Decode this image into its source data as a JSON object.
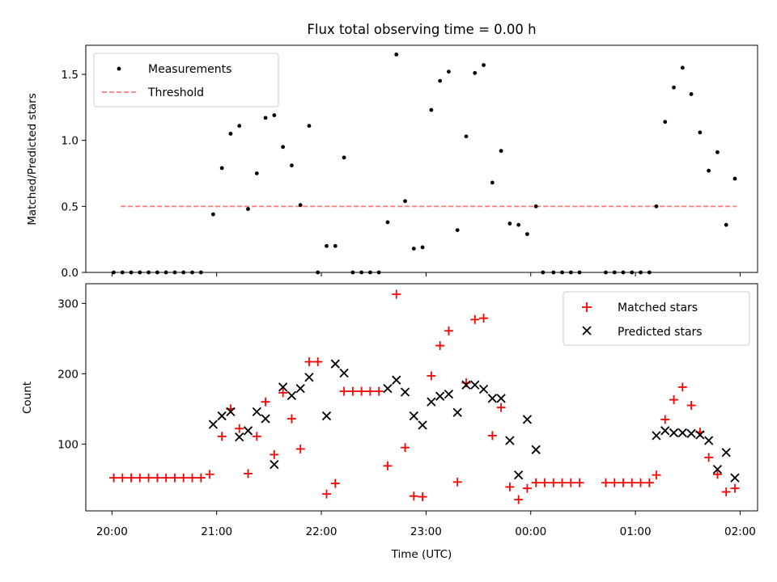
{
  "figure": {
    "title": "Flux total observing time = 0.00 h",
    "xlabel": "Time (UTC)"
  },
  "colors": {
    "measurements": "#000000",
    "threshold": "#ff7f7f",
    "matched": "#ff0000",
    "predicted": "#000000"
  },
  "chart_data": [
    {
      "type": "scatter",
      "ylabel": "Matched/Predicted stars",
      "xlim": [
        "19:45",
        "02:10"
      ],
      "ylim": [
        0,
        1.72
      ],
      "yticks": [
        "0.0",
        "0.5",
        "1.0",
        "1.5"
      ],
      "legend": {
        "placement": "top-left",
        "entries": [
          "Measurements",
          "Threshold"
        ]
      },
      "threshold": {
        "name": "Threshold",
        "y": 0.5,
        "x_start": "20:05",
        "x_end": "01:58"
      },
      "series": [
        {
          "name": "Measurements",
          "points": [
            [
              "20:01",
              0
            ],
            [
              "20:06",
              0
            ],
            [
              "20:11",
              0
            ],
            [
              "20:16",
              0
            ],
            [
              "20:21",
              0
            ],
            [
              "20:26",
              0
            ],
            [
              "20:31",
              0
            ],
            [
              "20:36",
              0
            ],
            [
              "20:41",
              0
            ],
            [
              "20:46",
              0
            ],
            [
              "20:51",
              0
            ],
            [
              "20:58",
              0.44
            ],
            [
              "21:03",
              0.79
            ],
            [
              "21:08",
              1.05
            ],
            [
              "21:13",
              1.11
            ],
            [
              "21:18",
              0.48
            ],
            [
              "21:23",
              0.75
            ],
            [
              "21:28",
              1.17
            ],
            [
              "21:33",
              1.19
            ],
            [
              "21:38",
              0.95
            ],
            [
              "21:43",
              0.81
            ],
            [
              "21:48",
              0.51
            ],
            [
              "21:53",
              1.11
            ],
            [
              "21:58",
              0.0
            ],
            [
              "22:03",
              0.2
            ],
            [
              "22:08",
              0.2
            ],
            [
              "22:13",
              0.87
            ],
            [
              "22:18",
              0
            ],
            [
              "22:23",
              0
            ],
            [
              "22:28",
              0
            ],
            [
              "22:33",
              0
            ],
            [
              "22:38",
              0.38
            ],
            [
              "22:43",
              1.65
            ],
            [
              "22:48",
              0.54
            ],
            [
              "22:53",
              0.18
            ],
            [
              "22:58",
              0.19
            ],
            [
              "23:03",
              1.23
            ],
            [
              "23:08",
              1.45
            ],
            [
              "23:13",
              1.52
            ],
            [
              "23:18",
              0.32
            ],
            [
              "23:23",
              1.03
            ],
            [
              "23:28",
              1.51
            ],
            [
              "23:33",
              1.57
            ],
            [
              "23:38",
              0.68
            ],
            [
              "23:43",
              0.92
            ],
            [
              "23:48",
              0.37
            ],
            [
              "23:53",
              0.36
            ],
            [
              "23:58",
              0.29
            ],
            [
              "00:03",
              0.5
            ],
            [
              "00:07",
              0
            ],
            [
              "00:13",
              0
            ],
            [
              "00:18",
              0
            ],
            [
              "00:23",
              0
            ],
            [
              "00:28",
              0
            ],
            [
              "00:43",
              0
            ],
            [
              "00:48",
              0
            ],
            [
              "00:53",
              0
            ],
            [
              "00:58",
              0
            ],
            [
              "01:03",
              0
            ],
            [
              "01:08",
              0
            ],
            [
              "01:12",
              0.5
            ],
            [
              "01:17",
              1.14
            ],
            [
              "01:22",
              1.4
            ],
            [
              "01:27",
              1.55
            ],
            [
              "01:32",
              1.35
            ],
            [
              "01:37",
              1.06
            ],
            [
              "01:42",
              0.77
            ],
            [
              "01:47",
              0.91
            ],
            [
              "01:52",
              0.36
            ],
            [
              "01:57",
              0.71
            ]
          ]
        }
      ]
    },
    {
      "type": "scatter",
      "ylabel": "Count",
      "xlim": [
        "19:45",
        "02:10"
      ],
      "ylim": [
        5,
        328
      ],
      "yticks": [
        "100",
        "200",
        "300"
      ],
      "xticks": [
        "20:00",
        "21:00",
        "22:00",
        "23:00",
        "00:00",
        "01:00",
        "02:00"
      ],
      "legend": {
        "placement": "top-right",
        "entries": [
          "Matched stars",
          "Predicted stars"
        ]
      },
      "series": [
        {
          "name": "Matched stars",
          "marker": "+",
          "points": [
            [
              "20:01",
              52
            ],
            [
              "20:06",
              52
            ],
            [
              "20:11",
              52
            ],
            [
              "20:16",
              52
            ],
            [
              "20:21",
              52
            ],
            [
              "20:26",
              52
            ],
            [
              "20:31",
              52
            ],
            [
              "20:36",
              52
            ],
            [
              "20:41",
              52
            ],
            [
              "20:46",
              52
            ],
            [
              "20:51",
              52
            ],
            [
              "20:56",
              57
            ],
            [
              "21:03",
              111
            ],
            [
              "21:08",
              150
            ],
            [
              "21:13",
              122
            ],
            [
              "21:18",
              58
            ],
            [
              "21:23",
              111
            ],
            [
              "21:28",
              160
            ],
            [
              "21:33",
              85
            ],
            [
              "21:38",
              173
            ],
            [
              "21:43",
              136
            ],
            [
              "21:48",
              93
            ],
            [
              "21:53",
              217
            ],
            [
              "21:58",
              217
            ],
            [
              "22:03",
              29
            ],
            [
              "22:08",
              44
            ],
            [
              "22:13",
              175
            ],
            [
              "22:18",
              175
            ],
            [
              "22:23",
              175
            ],
            [
              "22:28",
              175
            ],
            [
              "22:33",
              175
            ],
            [
              "22:38",
              69
            ],
            [
              "22:43",
              313
            ],
            [
              "22:48",
              95
            ],
            [
              "22:53",
              26
            ],
            [
              "22:58",
              25
            ],
            [
              "23:03",
              197
            ],
            [
              "23:08",
              240
            ],
            [
              "23:13",
              261
            ],
            [
              "23:18",
              46
            ],
            [
              "23:23",
              187
            ],
            [
              "23:28",
              277
            ],
            [
              "23:33",
              279
            ],
            [
              "23:38",
              112
            ],
            [
              "23:43",
              152
            ],
            [
              "23:48",
              39
            ],
            [
              "23:53",
              21
            ],
            [
              "23:58",
              37
            ],
            [
              "00:03",
              45
            ],
            [
              "00:08",
              45
            ],
            [
              "00:13",
              45
            ],
            [
              "00:18",
              45
            ],
            [
              "00:23",
              45
            ],
            [
              "00:28",
              45
            ],
            [
              "00:43",
              45
            ],
            [
              "00:48",
              45
            ],
            [
              "00:53",
              45
            ],
            [
              "00:58",
              45
            ],
            [
              "01:03",
              45
            ],
            [
              "01:08",
              45
            ],
            [
              "01:12",
              56
            ],
            [
              "01:17",
              135
            ],
            [
              "01:22",
              163
            ],
            [
              "01:27",
              181
            ],
            [
              "01:32",
              155
            ],
            [
              "01:37",
              117
            ],
            [
              "01:42",
              81
            ],
            [
              "01:47",
              57
            ],
            [
              "01:52",
              32
            ],
            [
              "01:57",
              37
            ]
          ]
        },
        {
          "name": "Predicted stars",
          "marker": "x",
          "points": [
            [
              "20:58",
              128
            ],
            [
              "21:03",
              140
            ],
            [
              "21:08",
              146
            ],
            [
              "21:13",
              110
            ],
            [
              "21:18",
              119
            ],
            [
              "21:23",
              146
            ],
            [
              "21:28",
              136
            ],
            [
              "21:33",
              71
            ],
            [
              "21:38",
              181
            ],
            [
              "21:43",
              169
            ],
            [
              "21:48",
              179
            ],
            [
              "21:53",
              195
            ],
            [
              "22:03",
              140
            ],
            [
              "22:08",
              214
            ],
            [
              "22:13",
              201
            ],
            [
              "22:38",
              179
            ],
            [
              "22:43",
              191
            ],
            [
              "22:48",
              174
            ],
            [
              "22:53",
              140
            ],
            [
              "22:58",
              127
            ],
            [
              "23:03",
              160
            ],
            [
              "23:08",
              168
            ],
            [
              "23:13",
              171
            ],
            [
              "23:18",
              145
            ],
            [
              "23:23",
              184
            ],
            [
              "23:28",
              184
            ],
            [
              "23:33",
              178
            ],
            [
              "23:38",
              165
            ],
            [
              "23:43",
              165
            ],
            [
              "23:48",
              105
            ],
            [
              "23:53",
              56
            ],
            [
              "23:58",
              135
            ],
            [
              "00:03",
              92
            ],
            [
              "01:12",
              112
            ],
            [
              "01:17",
              119
            ],
            [
              "01:22",
              116
            ],
            [
              "01:27",
              116
            ],
            [
              "01:32",
              115
            ],
            [
              "01:37",
              113
            ],
            [
              "01:42",
              105
            ],
            [
              "01:47",
              64
            ],
            [
              "01:52",
              88
            ],
            [
              "01:57",
              52
            ]
          ]
        }
      ]
    }
  ]
}
